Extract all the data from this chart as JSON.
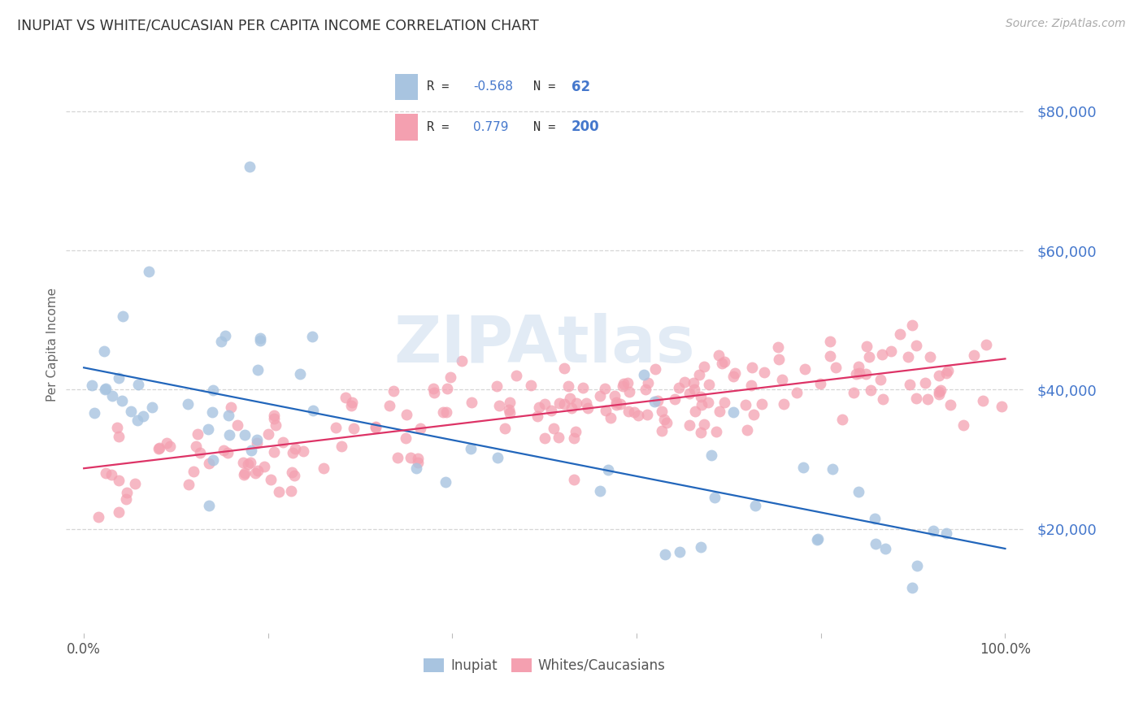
{
  "title": "INUPIAT VS WHITE/CAUCASIAN PER CAPITA INCOME CORRELATION CHART",
  "source": "Source: ZipAtlas.com",
  "ylabel": "Per Capita Income",
  "yticks": [
    20000,
    40000,
    60000,
    80000
  ],
  "ylim": [
    5000,
    88000
  ],
  "xlim": [
    -0.02,
    1.02
  ],
  "legend_inupiat_R": "-0.568",
  "legend_inupiat_N": "62",
  "legend_white_R": "0.779",
  "legend_white_N": "200",
  "inupiat_color": "#a8c4e0",
  "white_color": "#f4a0b0",
  "inupiat_line_color": "#2266bb",
  "white_line_color": "#dd3366",
  "background_color": "#ffffff",
  "grid_color": "#cccccc",
  "title_color": "#333333",
  "ylabel_color": "#666666",
  "ytick_color": "#4477cc",
  "xtick_color": "#555555",
  "watermark_color": "#b8cfe8",
  "legend_text_color": "#4477cc",
  "legend_label_color": "#333333",
  "source_color": "#aaaaaa"
}
